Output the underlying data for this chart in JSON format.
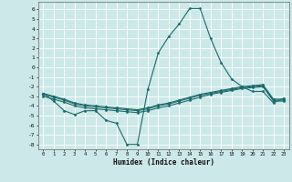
{
  "xlabel": "Humidex (Indice chaleur)",
  "background_color": "#cce8e8",
  "grid_color": "#ffffff",
  "line_color": "#1a6b6b",
  "xlim": [
    -0.5,
    23.5
  ],
  "ylim": [
    -8.5,
    6.8
  ],
  "xticks": [
    0,
    1,
    2,
    3,
    4,
    5,
    6,
    7,
    8,
    9,
    10,
    11,
    12,
    13,
    14,
    15,
    16,
    17,
    18,
    19,
    20,
    21,
    22,
    23
  ],
  "yticks": [
    -8,
    -7,
    -6,
    -5,
    -4,
    -3,
    -2,
    -1,
    0,
    1,
    2,
    3,
    4,
    5,
    6
  ],
  "line1_x": [
    0,
    1,
    2,
    3,
    4,
    5,
    6,
    7,
    8,
    9,
    10,
    11,
    12,
    13,
    14,
    15,
    16,
    17,
    18,
    19,
    20,
    21,
    22,
    23
  ],
  "line1_y": [
    -2.7,
    -3.5,
    -4.5,
    -4.9,
    -4.5,
    -4.5,
    -5.5,
    -5.8,
    -8.0,
    -8.0,
    -2.3,
    1.5,
    3.2,
    4.5,
    6.1,
    6.1,
    3.0,
    0.5,
    -1.2,
    -2.0,
    -2.5,
    -2.5,
    -3.7,
    -3.2
  ],
  "line2_x": [
    0,
    1,
    2,
    3,
    4,
    5,
    6,
    7,
    8,
    9,
    10,
    11,
    12,
    13,
    14,
    15,
    16,
    17,
    18,
    19,
    20,
    21,
    22,
    23
  ],
  "line2_y": [
    -3.0,
    -3.3,
    -3.6,
    -4.0,
    -4.2,
    -4.3,
    -4.4,
    -4.5,
    -4.6,
    -4.7,
    -4.5,
    -4.2,
    -4.0,
    -3.7,
    -3.4,
    -3.1,
    -2.8,
    -2.6,
    -2.4,
    -2.2,
    -2.1,
    -2.0,
    -3.5,
    -3.5
  ],
  "line3_x": [
    0,
    1,
    2,
    3,
    4,
    5,
    6,
    7,
    8,
    9,
    10,
    11,
    12,
    13,
    14,
    15,
    16,
    17,
    18,
    19,
    20,
    21,
    22,
    23
  ],
  "line3_y": [
    -2.7,
    -3.0,
    -3.3,
    -3.7,
    -3.9,
    -4.0,
    -4.1,
    -4.2,
    -4.3,
    -4.4,
    -4.2,
    -3.9,
    -3.7,
    -3.4,
    -3.1,
    -2.8,
    -2.6,
    -2.4,
    -2.2,
    -2.0,
    -1.9,
    -1.8,
    -3.3,
    -3.3
  ],
  "line4_x": [
    0,
    1,
    2,
    3,
    4,
    5,
    6,
    7,
    8,
    9,
    10,
    11,
    12,
    13,
    14,
    15,
    16,
    17,
    18,
    19,
    20,
    21,
    22,
    23
  ],
  "line4_y": [
    -2.8,
    -3.1,
    -3.4,
    -3.8,
    -4.0,
    -4.1,
    -4.2,
    -4.3,
    -4.4,
    -4.5,
    -4.3,
    -4.0,
    -3.8,
    -3.5,
    -3.2,
    -2.9,
    -2.7,
    -2.5,
    -2.3,
    -2.1,
    -2.0,
    -1.9,
    -3.4,
    -3.4
  ]
}
